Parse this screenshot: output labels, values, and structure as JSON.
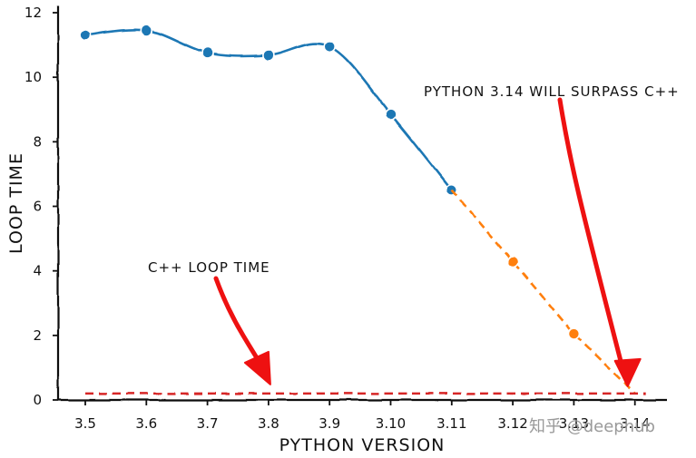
{
  "chart_data": {
    "type": "line",
    "xlabel": "PYTHON VERSION",
    "ylabel": "LOOP TIME",
    "categories": [
      "3.5",
      "3.6",
      "3.7",
      "3.8",
      "3.9",
      "3.10",
      "3.11",
      "3.12",
      "3.13",
      "3.14"
    ],
    "ylim": [
      0,
      12
    ],
    "yticks": [
      0,
      2,
      4,
      6,
      8,
      10,
      12
    ],
    "grid": false,
    "legend": "none",
    "series": [
      {
        "values": [
          11.3,
          11.45,
          10.75,
          10.68,
          10.95,
          8.85,
          6.5,
          null,
          null,
          null
        ],
        "color": "#1f77b4",
        "style": "solid"
      },
      {
        "values": [
          null,
          null,
          null,
          null,
          null,
          null,
          6.5,
          4.3,
          2.05,
          0.2
        ],
        "color": "#ff7f0e",
        "style": "dashed"
      },
      {
        "values": [
          0.2,
          0.2,
          0.2,
          0.2,
          0.2,
          0.2,
          0.2,
          0.2,
          0.2,
          0.2
        ],
        "color": "#d62728",
        "style": "dashed"
      }
    ],
    "annotations": [
      {
        "text": "PYTHON 3.14 WILL SURPASS C++",
        "points_to": {
          "x": "3.14",
          "y": 0.2
        },
        "arrow_color": "#ee1111"
      },
      {
        "text": "C++ LOOP TIME",
        "points_to": {
          "x": "3.8",
          "y": 0.2
        },
        "arrow_color": "#ee1111"
      }
    ]
  },
  "watermark": "知乎 @deephub"
}
